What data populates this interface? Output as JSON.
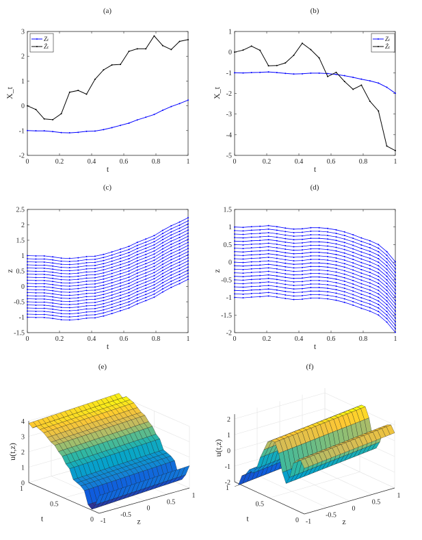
{
  "chart_data": [
    {
      "id": "a",
      "type": "line",
      "title": "(a)",
      "xlabel": "t",
      "ylabel": "X_t",
      "xlim": [
        0,
        1
      ],
      "ylim": [
        -2,
        3
      ],
      "xticks": [
        "0",
        "0.2",
        "0.4",
        "0.6",
        "0.8",
        "1"
      ],
      "yticks": [
        "-2",
        "-1",
        "0",
        "1",
        "2",
        "3"
      ],
      "legend": "top-left",
      "grid": false,
      "x": [
        0,
        0.053,
        0.105,
        0.158,
        0.211,
        0.263,
        0.316,
        0.368,
        0.421,
        0.474,
        0.526,
        0.579,
        0.632,
        0.684,
        0.737,
        0.789,
        0.842,
        0.895,
        0.947,
        1
      ],
      "series": [
        {
          "name": "Zₜ",
          "color": "#0000ff",
          "values": [
            -1,
            -1.01,
            -1.01,
            -1.04,
            -1.08,
            -1.09,
            -1.07,
            -1.03,
            -1.02,
            -0.96,
            -0.88,
            -0.79,
            -0.7,
            -0.57,
            -0.46,
            -0.35,
            -0.18,
            -0.03,
            0.09,
            0.23
          ]
        },
        {
          "name": "Żₜ",
          "color": "#000000",
          "values": [
            0,
            -0.15,
            -0.53,
            -0.56,
            -0.32,
            0.55,
            0.62,
            0.47,
            1.07,
            1.45,
            1.65,
            1.67,
            2.2,
            2.3,
            2.3,
            2.82,
            2.43,
            2.27,
            2.6,
            2.67
          ]
        }
      ]
    },
    {
      "id": "b",
      "type": "line",
      "title": "(b)",
      "xlabel": "t",
      "ylabel": "X_t",
      "xlim": [
        0,
        1
      ],
      "ylim": [
        -5,
        1
      ],
      "xticks": [
        "0",
        "0.2",
        "0.4",
        "0.6",
        "0.8",
        "1"
      ],
      "yticks": [
        "-5",
        "-4",
        "-3",
        "-2",
        "-1",
        "0",
        "1"
      ],
      "legend": "top-right",
      "grid": false,
      "x": [
        0,
        0.053,
        0.105,
        0.158,
        0.211,
        0.263,
        0.316,
        0.368,
        0.421,
        0.474,
        0.526,
        0.579,
        0.632,
        0.684,
        0.737,
        0.789,
        0.842,
        0.895,
        0.947,
        1
      ],
      "series": [
        {
          "name": "Zₜ",
          "color": "#0000ff",
          "values": [
            -1,
            -1.01,
            -0.99,
            -0.98,
            -0.96,
            -0.99,
            -1.03,
            -1.06,
            -1.05,
            -1.02,
            -1.02,
            -1.04,
            -1.08,
            -1.14,
            -1.22,
            -1.31,
            -1.39,
            -1.5,
            -1.7,
            -1.99
          ]
        },
        {
          "name": "Żₜ",
          "color": "#000000",
          "values": [
            0,
            0.1,
            0.29,
            0.09,
            -0.66,
            -0.65,
            -0.52,
            -0.15,
            0.43,
            0.12,
            -0.28,
            -1.18,
            -0.98,
            -1.42,
            -1.8,
            -1.6,
            -2.38,
            -2.85,
            -4.55,
            -4.77
          ]
        }
      ]
    },
    {
      "id": "c",
      "type": "line",
      "title": "(c)",
      "xlabel": "t",
      "ylabel": "z",
      "xlim": [
        0,
        1
      ],
      "ylim": [
        -1.5,
        2.5
      ],
      "xticks": [
        "0",
        "0.2",
        "0.4",
        "0.6",
        "0.8",
        "1"
      ],
      "yticks": [
        "-1.5",
        "-1",
        "-0.5",
        "0",
        "0.5",
        "1",
        "1.5",
        "2",
        "2.5"
      ],
      "grid": false,
      "color": "#0000ff",
      "initial_z": [
        -1,
        -0.9,
        -0.8,
        -0.7,
        -0.6,
        -0.5,
        -0.4,
        -0.3,
        -0.2,
        -0.1,
        0,
        0.1,
        0.2,
        0.3,
        0.4,
        0.5,
        0.6,
        0.7,
        0.8,
        0.9,
        1
      ],
      "x": [
        0,
        0.053,
        0.105,
        0.158,
        0.211,
        0.263,
        0.316,
        0.368,
        0.421,
        0.474,
        0.526,
        0.579,
        0.632,
        0.684,
        0.737,
        0.789,
        0.842,
        0.895,
        0.947,
        1
      ],
      "base_values": [
        -1,
        -1.01,
        -1.01,
        -1.04,
        -1.08,
        -1.09,
        -1.07,
        -1.03,
        -1.02,
        -0.96,
        -0.88,
        -0.79,
        -0.7,
        -0.57,
        -0.46,
        -0.35,
        -0.18,
        -0.03,
        0.09,
        0.23
      ]
    },
    {
      "id": "d",
      "type": "line",
      "title": "(d)",
      "xlabel": "t",
      "ylabel": "z",
      "xlim": [
        0,
        1
      ],
      "ylim": [
        -2,
        1.5
      ],
      "xticks": [
        "0",
        "0.2",
        "0.4",
        "0.6",
        "0.8",
        "1"
      ],
      "yticks": [
        "-2",
        "-1.5",
        "-1",
        "-0.5",
        "0",
        "0.5",
        "1",
        "1.5"
      ],
      "grid": false,
      "color": "#0000ff",
      "initial_z": [
        -1,
        -0.9,
        -0.8,
        -0.7,
        -0.6,
        -0.5,
        -0.4,
        -0.3,
        -0.2,
        -0.1,
        0,
        0.1,
        0.2,
        0.3,
        0.4,
        0.5,
        0.6,
        0.7,
        0.8,
        0.9,
        1
      ],
      "x": [
        0,
        0.053,
        0.105,
        0.158,
        0.211,
        0.263,
        0.316,
        0.368,
        0.421,
        0.474,
        0.526,
        0.579,
        0.632,
        0.684,
        0.737,
        0.789,
        0.842,
        0.895,
        0.947,
        1
      ],
      "base_values": [
        -1,
        -1.01,
        -0.99,
        -0.98,
        -0.96,
        -0.99,
        -1.03,
        -1.06,
        -1.05,
        -1.02,
        -1.02,
        -1.04,
        -1.08,
        -1.14,
        -1.22,
        -1.31,
        -1.39,
        -1.5,
        -1.7,
        -1.99
      ]
    },
    {
      "id": "e",
      "type": "surface",
      "title": "(e)",
      "xlabel": "z",
      "ylabel": "t",
      "zlabel": "u(t,z)",
      "tlim": [
        0,
        1
      ],
      "zlim": [
        -1,
        1
      ],
      "ulim": [
        0,
        4
      ],
      "tticks": [
        "0",
        "0.5",
        "1"
      ],
      "zticks": [
        "-1",
        "-0.5",
        "0",
        "0.5",
        "1"
      ],
      "uticks": [
        "0",
        "1",
        "2",
        "3",
        "4"
      ],
      "t": [
        0,
        0.053,
        0.105,
        0.158,
        0.211,
        0.263,
        0.316,
        0.368,
        0.421,
        0.474,
        0.526,
        0.579,
        0.632,
        0.684,
        0.737,
        0.789,
        0.842,
        0.895,
        0.947,
        1
      ],
      "u_profile_over_t": [
        1.3,
        0.6,
        0.2,
        0.4,
        1.2,
        1.4,
        1.5,
        1.6,
        2.2,
        2.4,
        2.8,
        3.0,
        3.3,
        3.4,
        3.6,
        3.8,
        3.9,
        4.0,
        3.8,
        4.0
      ],
      "u_slope_over_z": 0.15
    },
    {
      "id": "f",
      "type": "surface",
      "title": "(f)",
      "xlabel": "z",
      "ylabel": "t",
      "zlabel": "u(t,z)",
      "tlim": [
        0,
        1
      ],
      "zlim": [
        -1,
        1
      ],
      "ulim": [
        -2,
        2.3
      ],
      "tticks": [
        "0",
        "0.5",
        "1"
      ],
      "zticks": [
        "-1",
        "-0.5",
        "0",
        "0.5",
        "1"
      ],
      "uticks": [
        "-2",
        "-1",
        "0",
        "1",
        "2"
      ],
      "t": [
        0,
        0.053,
        0.105,
        0.158,
        0.211,
        0.263,
        0.316,
        0.368,
        0.421,
        0.474,
        0.526,
        0.579,
        0.632,
        0.684,
        0.737,
        0.789,
        0.842,
        0.895,
        0.947,
        1
      ],
      "u_profile_over_t": [
        1.2,
        1.6,
        1.5,
        1.2,
        0.2,
        -0.3,
        0.3,
        1.4,
        2.0,
        2.0,
        1.8,
        1.2,
        0.6,
        -0.2,
        -0.6,
        -0.5,
        -0.9,
        -1.1,
        -1.8,
        -2.0
      ],
      "u_slope_over_z": 0.3
    }
  ]
}
